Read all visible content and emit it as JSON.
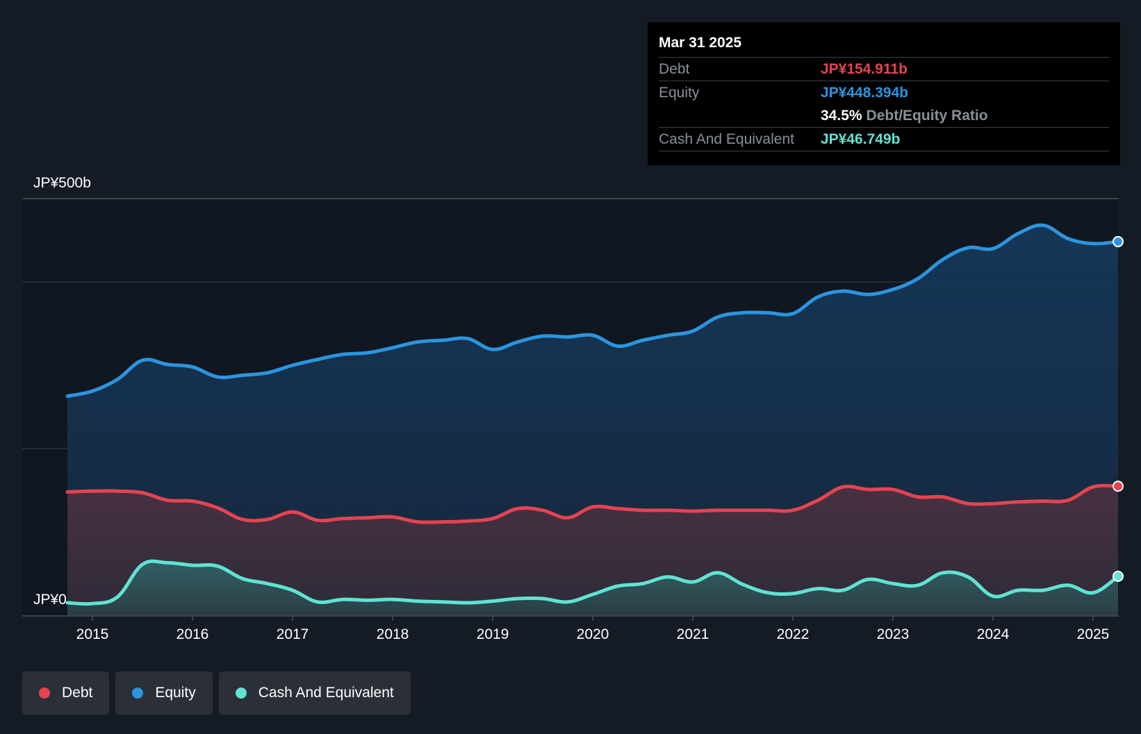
{
  "tooltip": {
    "date": "Mar 31 2025",
    "rows": [
      {
        "label": "Debt",
        "value": "JP¥154.911b",
        "color": "#e64350"
      },
      {
        "label": "Equity",
        "value": "JP¥448.394b",
        "color": "#2b95e0"
      },
      {
        "ratio_value": "34.5%",
        "ratio_label": "Debt/Equity Ratio"
      },
      {
        "label": "Cash And Equivalent",
        "value": "JP¥46.749b",
        "color": "#60e3d3"
      }
    ]
  },
  "legend": [
    {
      "label": "Debt",
      "color": "#e64350"
    },
    {
      "label": "Equity",
      "color": "#2b95e0"
    },
    {
      "label": "Cash And Equivalent",
      "color": "#60e3d3"
    }
  ],
  "chart_data": {
    "type": "area",
    "y_top_label": "JP¥500b",
    "y_bottom_label": "JP¥0",
    "ylim": [
      0,
      500
    ],
    "xlim": [
      2014.3,
      2025.25
    ],
    "x_ticks": [
      "2015",
      "2016",
      "2017",
      "2018",
      "2019",
      "2020",
      "2021",
      "2022",
      "2023",
      "2024",
      "2025"
    ],
    "grid": true,
    "legend_position": "bottom-left",
    "x": [
      2014.75,
      2015.0,
      2015.25,
      2015.5,
      2015.75,
      2016.0,
      2016.25,
      2016.5,
      2016.75,
      2017.0,
      2017.25,
      2017.5,
      2017.75,
      2018.0,
      2018.25,
      2018.5,
      2018.75,
      2019.0,
      2019.25,
      2019.5,
      2019.75,
      2020.0,
      2020.25,
      2020.5,
      2020.75,
      2021.0,
      2021.25,
      2021.5,
      2021.75,
      2022.0,
      2022.25,
      2022.5,
      2022.75,
      2023.0,
      2023.25,
      2023.5,
      2023.75,
      2024.0,
      2024.25,
      2024.5,
      2024.75,
      2025.0,
      2025.25
    ],
    "series": [
      {
        "name": "Equity",
        "color": "#2b95e0",
        "values": [
          263,
          269,
          283,
          306,
          301,
          298,
          286,
          288,
          291,
          300,
          307,
          313,
          315,
          321,
          328,
          330,
          332,
          319,
          328,
          335,
          334,
          336,
          323,
          330,
          336,
          341,
          358,
          363,
          363,
          362,
          382,
          389,
          385,
          391,
          404,
          427,
          441,
          440,
          458,
          468,
          452,
          446,
          448.394
        ]
      },
      {
        "name": "Debt",
        "color": "#e64350",
        "values": [
          148,
          149,
          149,
          147,
          138,
          137,
          129,
          115,
          115,
          124,
          114,
          116,
          117,
          118,
          112,
          112,
          113,
          116,
          128,
          126,
          117,
          130,
          128,
          126,
          126,
          125,
          126,
          126,
          126,
          126,
          138,
          154,
          151,
          151,
          142,
          142,
          134,
          134,
          136,
          137,
          138,
          154,
          154.911
        ]
      },
      {
        "name": "Cash And Equivalent",
        "color": "#60e3d3",
        "values": [
          15,
          14,
          22,
          61,
          63,
          60,
          59,
          44,
          38,
          30,
          16,
          19,
          18,
          19,
          17,
          16,
          15,
          17,
          20,
          20,
          16,
          25,
          35,
          38,
          46,
          40,
          51,
          37,
          27,
          26,
          32,
          30,
          43,
          38,
          36,
          51,
          46,
          23,
          30,
          30,
          36,
          27,
          46.749
        ]
      }
    ]
  }
}
